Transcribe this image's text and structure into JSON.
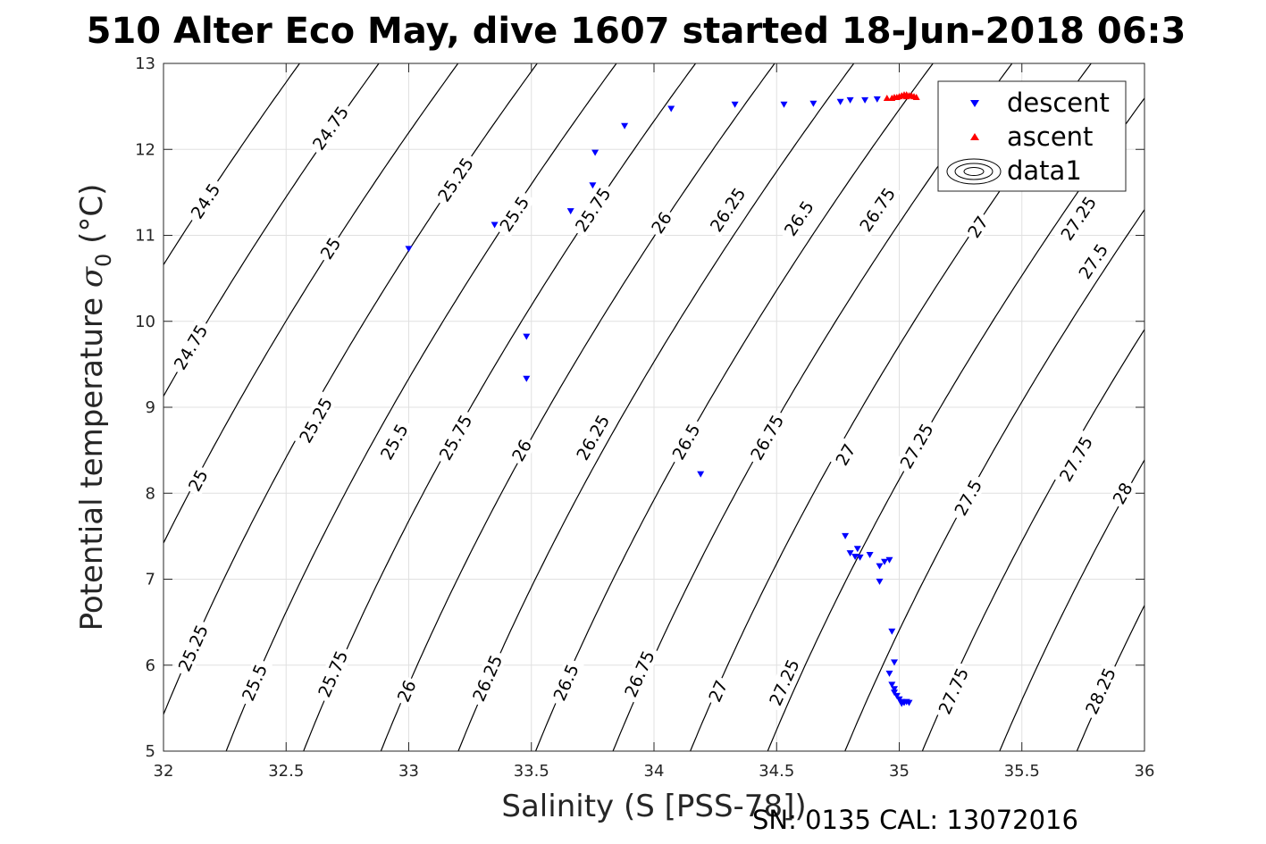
{
  "chart_data": {
    "type": "scatter",
    "title": "510 Alter Eco May, dive 1607 started 18-Jun-2018 06:3",
    "xlabel": "Salinity (S [PSS-78])",
    "ylabel": "Potential temperature σ₀ (°C)",
    "ylabel_main": "Potential temperature ",
    "ylabel_sigma": "σ",
    "ylabel_sub": "0",
    "ylabel_unit": " (°C)",
    "footnote": "SN: 0135  CAL: 13072016",
    "xlim": [
      32,
      36
    ],
    "ylim": [
      5,
      13
    ],
    "xticks": [
      32,
      32.5,
      33,
      33.5,
      34,
      34.5,
      35,
      35.5,
      36
    ],
    "xtick_labels": [
      "32",
      "32.5",
      "33",
      "33.5",
      "34",
      "34.5",
      "35",
      "35.5",
      "36"
    ],
    "yticks": [
      5,
      6,
      7,
      8,
      9,
      10,
      11,
      12,
      13
    ],
    "ytick_labels": [
      "5",
      "6",
      "7",
      "8",
      "9",
      "10",
      "11",
      "12",
      "13"
    ],
    "grid": true,
    "legend_position": "top-right",
    "legend": [
      {
        "label": "descent",
        "marker": "triangle-down",
        "color": "#0000ff"
      },
      {
        "label": "ascent",
        "marker": "triangle-up",
        "color": "#ff0000"
      },
      {
        "label": "data1",
        "marker": "contour",
        "color": "#000000"
      }
    ],
    "contour_levels": [
      24.5,
      24.75,
      25,
      25.25,
      25.5,
      25.75,
      26,
      26.25,
      26.5,
      26.75,
      27,
      27.25,
      27.5,
      27.75,
      28,
      28.25
    ],
    "contour_label_points": [
      {
        "level": 24.5,
        "text": "24.5",
        "s": 32.17,
        "t": 11.4
      },
      {
        "level": 24.75,
        "text": "24.75",
        "s": 32.68,
        "t": 12.25
      },
      {
        "level": 24.75,
        "text": "24.75",
        "s": 32.11,
        "t": 9.7
      },
      {
        "level": 25,
        "text": "25",
        "s": 32.68,
        "t": 10.85
      },
      {
        "level": 25,
        "text": "25",
        "s": 32.14,
        "t": 8.15
      },
      {
        "level": 25.25,
        "text": "25.25",
        "s": 33.19,
        "t": 11.65
      },
      {
        "level": 25.25,
        "text": "25.25",
        "s": 32.62,
        "t": 8.85
      },
      {
        "level": 25.25,
        "text": "25.25",
        "s": 32.12,
        "t": 6.2
      },
      {
        "level": 25.5,
        "text": "25.5",
        "s": 33.43,
        "t": 11.25
      },
      {
        "level": 25.5,
        "text": "25.5",
        "s": 32.94,
        "t": 8.6
      },
      {
        "level": 25.5,
        "text": "25.5",
        "s": 32.37,
        "t": 5.8
      },
      {
        "level": 25.75,
        "text": "25.75",
        "s": 33.75,
        "t": 11.3
      },
      {
        "level": 25.75,
        "text": "25.75",
        "s": 33.19,
        "t": 8.65
      },
      {
        "level": 25.75,
        "text": "25.75",
        "s": 32.69,
        "t": 5.9
      },
      {
        "level": 26,
        "text": "26",
        "s": 34.03,
        "t": 11.15
      },
      {
        "level": 26,
        "text": "26",
        "s": 33.46,
        "t": 8.5
      },
      {
        "level": 26,
        "text": "26",
        "s": 32.99,
        "t": 5.7
      },
      {
        "level": 26.25,
        "text": "26.25",
        "s": 34.3,
        "t": 11.3
      },
      {
        "level": 26.25,
        "text": "26.25",
        "s": 33.75,
        "t": 8.65
      },
      {
        "level": 26.25,
        "text": "26.25",
        "s": 33.32,
        "t": 5.85
      },
      {
        "level": 26.5,
        "text": "26.5",
        "s": 34.59,
        "t": 11.2
      },
      {
        "level": 26.5,
        "text": "26.5",
        "s": 34.13,
        "t": 8.6
      },
      {
        "level": 26.5,
        "text": "26.5",
        "s": 33.64,
        "t": 5.8
      },
      {
        "level": 26.75,
        "text": "26.75",
        "s": 34.91,
        "t": 11.3
      },
      {
        "level": 26.75,
        "text": "26.75",
        "s": 34.46,
        "t": 8.65
      },
      {
        "level": 26.75,
        "text": "26.75",
        "s": 33.94,
        "t": 5.9
      },
      {
        "level": 27,
        "text": "27",
        "s": 35.32,
        "t": 11.1
      },
      {
        "level": 27,
        "text": "27",
        "s": 34.78,
        "t": 8.45
      },
      {
        "level": 27,
        "text": "27",
        "s": 34.26,
        "t": 5.7
      },
      {
        "level": 27.25,
        "text": "27.25",
        "s": 35.73,
        "t": 11.2
      },
      {
        "level": 27.25,
        "text": "27.25",
        "s": 35.07,
        "t": 8.55
      },
      {
        "level": 27.25,
        "text": "27.25",
        "s": 34.53,
        "t": 5.8
      },
      {
        "level": 27.5,
        "text": "27.5",
        "s": 35.79,
        "t": 10.7
      },
      {
        "level": 27.5,
        "text": "27.5",
        "s": 35.28,
        "t": 7.95
      },
      {
        "level": 27.75,
        "text": "27.75",
        "s": 35.72,
        "t": 8.4
      },
      {
        "level": 27.75,
        "text": "27.75",
        "s": 35.22,
        "t": 5.7
      },
      {
        "level": 28,
        "text": "28",
        "s": 35.91,
        "t": 8.0
      },
      {
        "level": 28.25,
        "text": "28.25",
        "s": 35.82,
        "t": 5.7
      }
    ],
    "series": [
      {
        "name": "descent",
        "marker": "triangle-down",
        "color": "#0000ff",
        "points": [
          [
            33.0,
            10.84
          ],
          [
            33.35,
            11.12
          ],
          [
            33.48,
            9.82
          ],
          [
            33.48,
            9.33
          ],
          [
            33.66,
            11.28
          ],
          [
            33.75,
            11.58
          ],
          [
            33.76,
            11.96
          ],
          [
            33.88,
            12.27
          ],
          [
            34.07,
            12.47
          ],
          [
            34.33,
            12.52
          ],
          [
            34.53,
            12.52
          ],
          [
            34.65,
            12.53
          ],
          [
            34.19,
            8.22
          ],
          [
            34.76,
            12.55
          ],
          [
            34.8,
            12.57
          ],
          [
            34.86,
            12.57
          ],
          [
            34.91,
            12.58
          ],
          [
            34.78,
            7.5
          ],
          [
            34.8,
            7.3
          ],
          [
            34.83,
            7.35
          ],
          [
            34.84,
            7.25
          ],
          [
            34.82,
            7.26
          ],
          [
            34.88,
            7.28
          ],
          [
            34.92,
            7.15
          ],
          [
            34.94,
            7.2
          ],
          [
            34.96,
            7.22
          ],
          [
            34.92,
            6.97
          ],
          [
            34.97,
            6.39
          ],
          [
            34.98,
            6.03
          ],
          [
            34.96,
            5.9
          ],
          [
            34.97,
            5.77
          ],
          [
            34.98,
            5.72
          ],
          [
            34.98,
            5.68
          ],
          [
            34.99,
            5.64
          ],
          [
            35.0,
            5.6
          ],
          [
            35.01,
            5.57
          ],
          [
            35.02,
            5.56
          ],
          [
            35.03,
            5.57
          ],
          [
            35.04,
            5.56
          ],
          [
            35.01,
            5.55
          ]
        ]
      },
      {
        "name": "ascent",
        "marker": "triangle-up",
        "color": "#ff0000",
        "points": [
          [
            34.95,
            12.6
          ],
          [
            34.97,
            12.6
          ],
          [
            34.98,
            12.61
          ],
          [
            34.99,
            12.61
          ],
          [
            35.0,
            12.62
          ],
          [
            35.01,
            12.63
          ],
          [
            35.02,
            12.63
          ],
          [
            35.03,
            12.64
          ],
          [
            35.04,
            12.63
          ],
          [
            35.05,
            12.63
          ],
          [
            35.06,
            12.62
          ],
          [
            35.07,
            12.61
          ],
          [
            35.03,
            12.62
          ],
          [
            35.02,
            12.64
          ]
        ]
      }
    ]
  }
}
